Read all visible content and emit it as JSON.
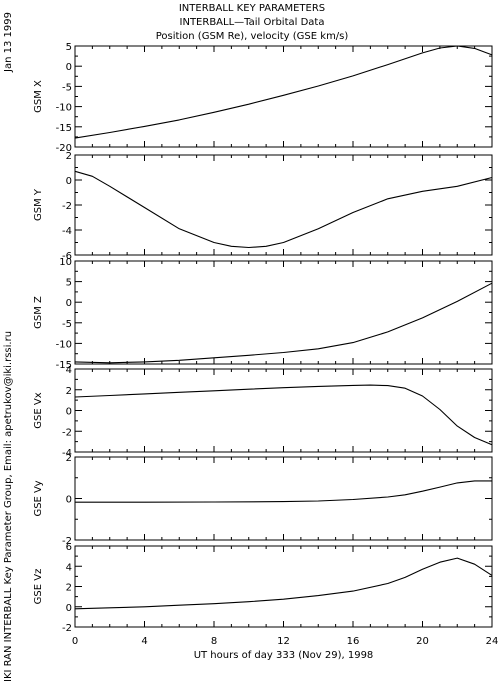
{
  "header": {
    "line1": "INTERBALL KEY PARAMETERS",
    "line2": "INTERBALL—Tail Orbital Data",
    "line3": "Position (GSM Re), velocity (GSE km/s)"
  },
  "sidebar": {
    "date": "Jan 13 1999",
    "credit": "IKI RAN INTERBALL Key Parameter Group, Email: apetrukov@iki.rssi.ru"
  },
  "chart_data": {
    "type": "line",
    "xlabel": "UT hours of day 333 (Nov 29), 1998",
    "xlim": [
      0,
      24
    ],
    "xticks": [
      "0",
      "4",
      "8",
      "12",
      "16",
      "20",
      "24"
    ],
    "panels": [
      {
        "ylabel": "GSM X",
        "ylim": [
          -20,
          5
        ],
        "yticks": [
          "5",
          "0",
          "-5",
          "-10",
          "-15",
          "-20"
        ],
        "x": [
          0,
          2,
          4,
          6,
          8,
          10,
          12,
          14,
          16,
          18,
          20,
          21,
          22,
          23,
          24
        ],
        "values": [
          -17.8,
          -16.4,
          -14.9,
          -13.3,
          -11.4,
          -9.4,
          -7.2,
          -4.9,
          -2.4,
          0.4,
          3.3,
          4.5,
          5.0,
          4.4,
          2.8
        ]
      },
      {
        "ylabel": "GSM Y",
        "ylim": [
          -6,
          2
        ],
        "yticks": [
          "2",
          "0",
          "-2",
          "-4",
          "-6"
        ],
        "x": [
          0,
          1,
          2,
          4,
          6,
          8,
          9,
          10,
          11,
          12,
          14,
          16,
          18,
          20,
          22,
          24
        ],
        "values": [
          0.7,
          0.3,
          -0.5,
          -2.2,
          -3.9,
          -5.0,
          -5.3,
          -5.4,
          -5.3,
          -5.0,
          -3.9,
          -2.6,
          -1.5,
          -0.9,
          -0.5,
          0.2
        ]
      },
      {
        "ylabel": "GSM Z",
        "ylim": [
          -15,
          10
        ],
        "yticks": [
          "10",
          "5",
          "0",
          "-5",
          "-10",
          "-15"
        ],
        "x": [
          0,
          2,
          4,
          6,
          8,
          10,
          12,
          14,
          16,
          18,
          20,
          22,
          24
        ],
        "values": [
          -14.5,
          -14.7,
          -14.5,
          -14.1,
          -13.5,
          -12.9,
          -12.2,
          -11.3,
          -9.8,
          -7.2,
          -3.8,
          0.2,
          4.6
        ]
      },
      {
        "ylabel": "GSE Vx",
        "ylim": [
          -4,
          4
        ],
        "yticks": [
          "4",
          "2",
          "0",
          "-2",
          "-4"
        ],
        "x": [
          0,
          2,
          4,
          6,
          8,
          10,
          12,
          14,
          16,
          17,
          18,
          19,
          20,
          21,
          22,
          23,
          24
        ],
        "values": [
          1.3,
          1.45,
          1.6,
          1.75,
          1.9,
          2.05,
          2.2,
          2.32,
          2.42,
          2.45,
          2.4,
          2.15,
          1.4,
          0.1,
          -1.5,
          -2.6,
          -3.3
        ]
      },
      {
        "ylabel": "GSE Vy",
        "ylim": [
          -2,
          2
        ],
        "yticks": [
          "2",
          "0",
          "-2"
        ],
        "x": [
          0,
          4,
          8,
          12,
          14,
          16,
          18,
          19,
          20,
          21,
          22,
          23,
          24
        ],
        "values": [
          -0.18,
          -0.18,
          -0.17,
          -0.15,
          -0.12,
          -0.05,
          0.07,
          0.18,
          0.35,
          0.55,
          0.75,
          0.85,
          0.85
        ]
      },
      {
        "ylabel": "GSE Vz",
        "ylim": [
          -2,
          6
        ],
        "yticks": [
          "6",
          "4",
          "2",
          "0",
          "-2"
        ],
        "x": [
          0,
          2,
          4,
          6,
          8,
          10,
          12,
          14,
          16,
          18,
          19,
          20,
          21,
          22,
          23,
          24
        ],
        "values": [
          -0.2,
          -0.1,
          0.0,
          0.15,
          0.3,
          0.5,
          0.75,
          1.1,
          1.55,
          2.3,
          2.9,
          3.7,
          4.4,
          4.8,
          4.2,
          3.1
        ]
      }
    ]
  }
}
